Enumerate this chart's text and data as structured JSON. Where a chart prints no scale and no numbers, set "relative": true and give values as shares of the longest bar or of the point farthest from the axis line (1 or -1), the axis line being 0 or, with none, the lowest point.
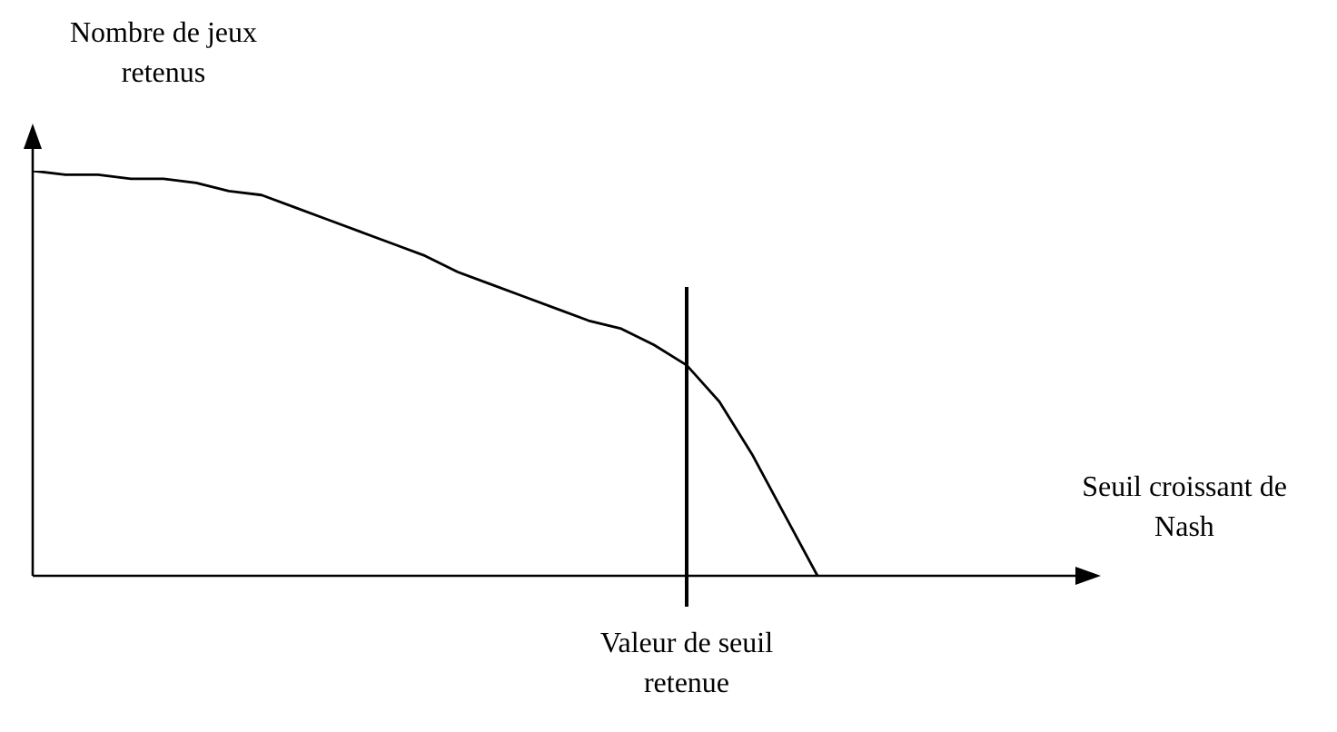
{
  "chart_data": {
    "type": "line",
    "relative": true,
    "ylabel": "Nombre de jeux retenus",
    "xlabel": "Seuil croissant de Nash",
    "categories": [
      null,
      null,
      null,
      null,
      null,
      null,
      null,
      null,
      null,
      null,
      null,
      null,
      null,
      null,
      null,
      null,
      null,
      null,
      null,
      null,
      null,
      null,
      null,
      null,
      null,
      null,
      null,
      null,
      null,
      null,
      null,
      null,
      null
    ],
    "series": [
      {
        "color": "#000000",
        "values": [
          1,
          0.99,
          0.99,
          0.98,
          0.98,
          0.97,
          0.95,
          0.94,
          0.91,
          0.88,
          0.85,
          0.82,
          0.79,
          0.75,
          0.72,
          0.69,
          0.66,
          0.63,
          0.61,
          0.57,
          0.52,
          0.43,
          0.3,
          0.15,
          0,
          null,
          null,
          null,
          null,
          null,
          null,
          null,
          null
        ]
      }
    ],
    "annotations": [
      "Valeur de seuil retenue"
    ],
    "grid": false,
    "legend": false,
    "marker": "none",
    "line_style": "solid"
  }
}
